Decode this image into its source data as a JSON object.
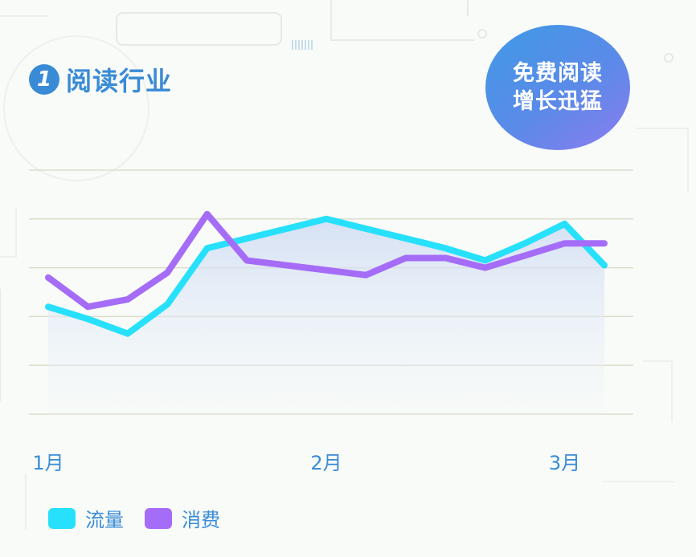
{
  "header": {
    "badge_number": "1",
    "title": "阅读行业"
  },
  "promo": {
    "line1": "免费阅读",
    "line2": "增长迅猛",
    "gradient_start": "#3e9ae6",
    "gradient_end": "#8c7cf0"
  },
  "chart_data": {
    "type": "line",
    "title": "",
    "xlabel": "",
    "ylabel": "",
    "x_tick_labels": [
      "1月",
      "2月",
      "3月"
    ],
    "x_tick_positions": [
      0,
      7,
      13
    ],
    "x_range": [
      0,
      14
    ],
    "ylim": [
      0,
      5
    ],
    "grid": true,
    "legend_position": "bottom-left",
    "series": [
      {
        "name": "流量",
        "color": "#27e0fb",
        "values": [
          2.2,
          1.95,
          1.65,
          2.25,
          3.4,
          3.6,
          3.8,
          4.0,
          3.8,
          3.6,
          3.4,
          3.15,
          3.5,
          3.9,
          3.05
        ]
      },
      {
        "name": "消费",
        "color": "#a56cf7",
        "values": [
          2.8,
          2.2,
          2.35,
          2.9,
          4.1,
          3.15,
          3.05,
          2.95,
          2.85,
          3.2,
          3.2,
          3.0,
          3.25,
          3.5,
          3.5
        ]
      }
    ]
  }
}
